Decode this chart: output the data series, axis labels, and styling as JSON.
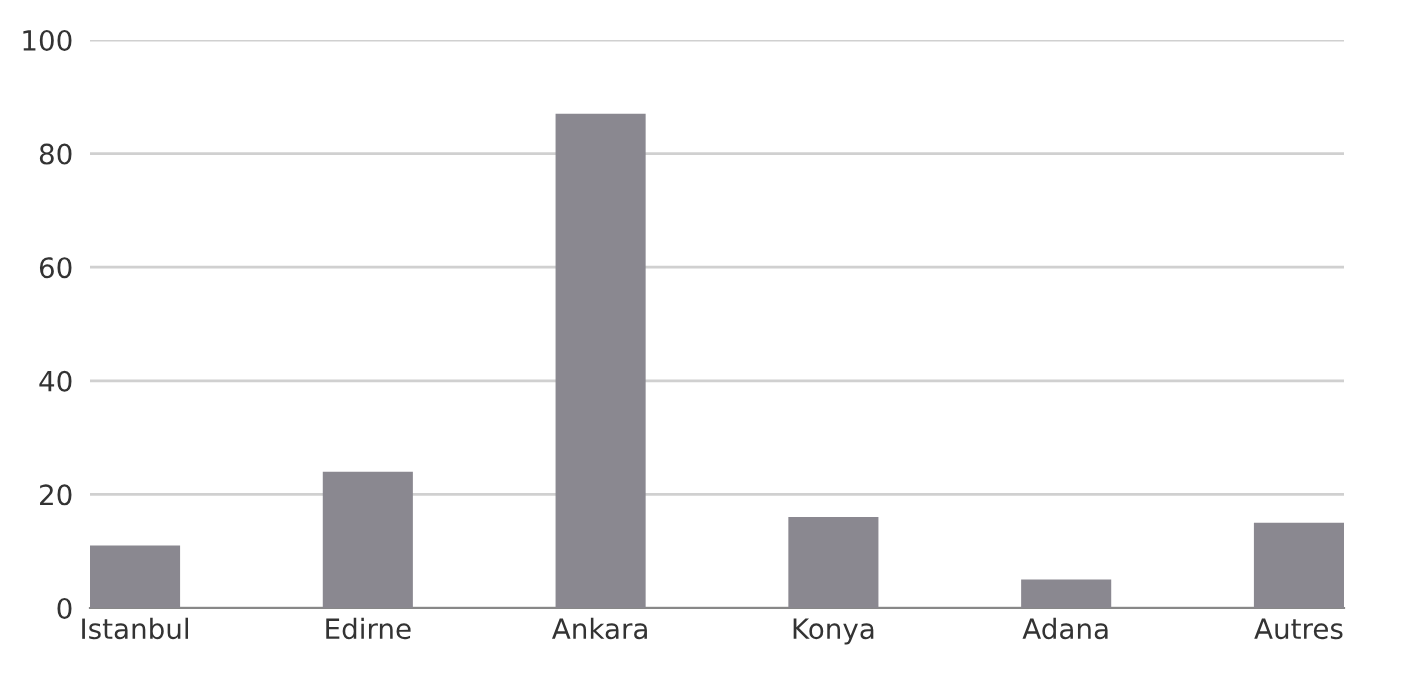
{
  "chart_data": {
    "type": "bar",
    "categories": [
      "Istanbul",
      "Edirne",
      "Ankara",
      "Konya",
      "Adana",
      "Autres"
    ],
    "values": [
      11,
      24,
      87,
      16,
      5,
      15
    ],
    "color": "#8a8890",
    "ylim": [
      0,
      100
    ],
    "yticks": [
      0,
      20,
      40,
      60,
      80,
      100
    ],
    "grid": "y"
  }
}
